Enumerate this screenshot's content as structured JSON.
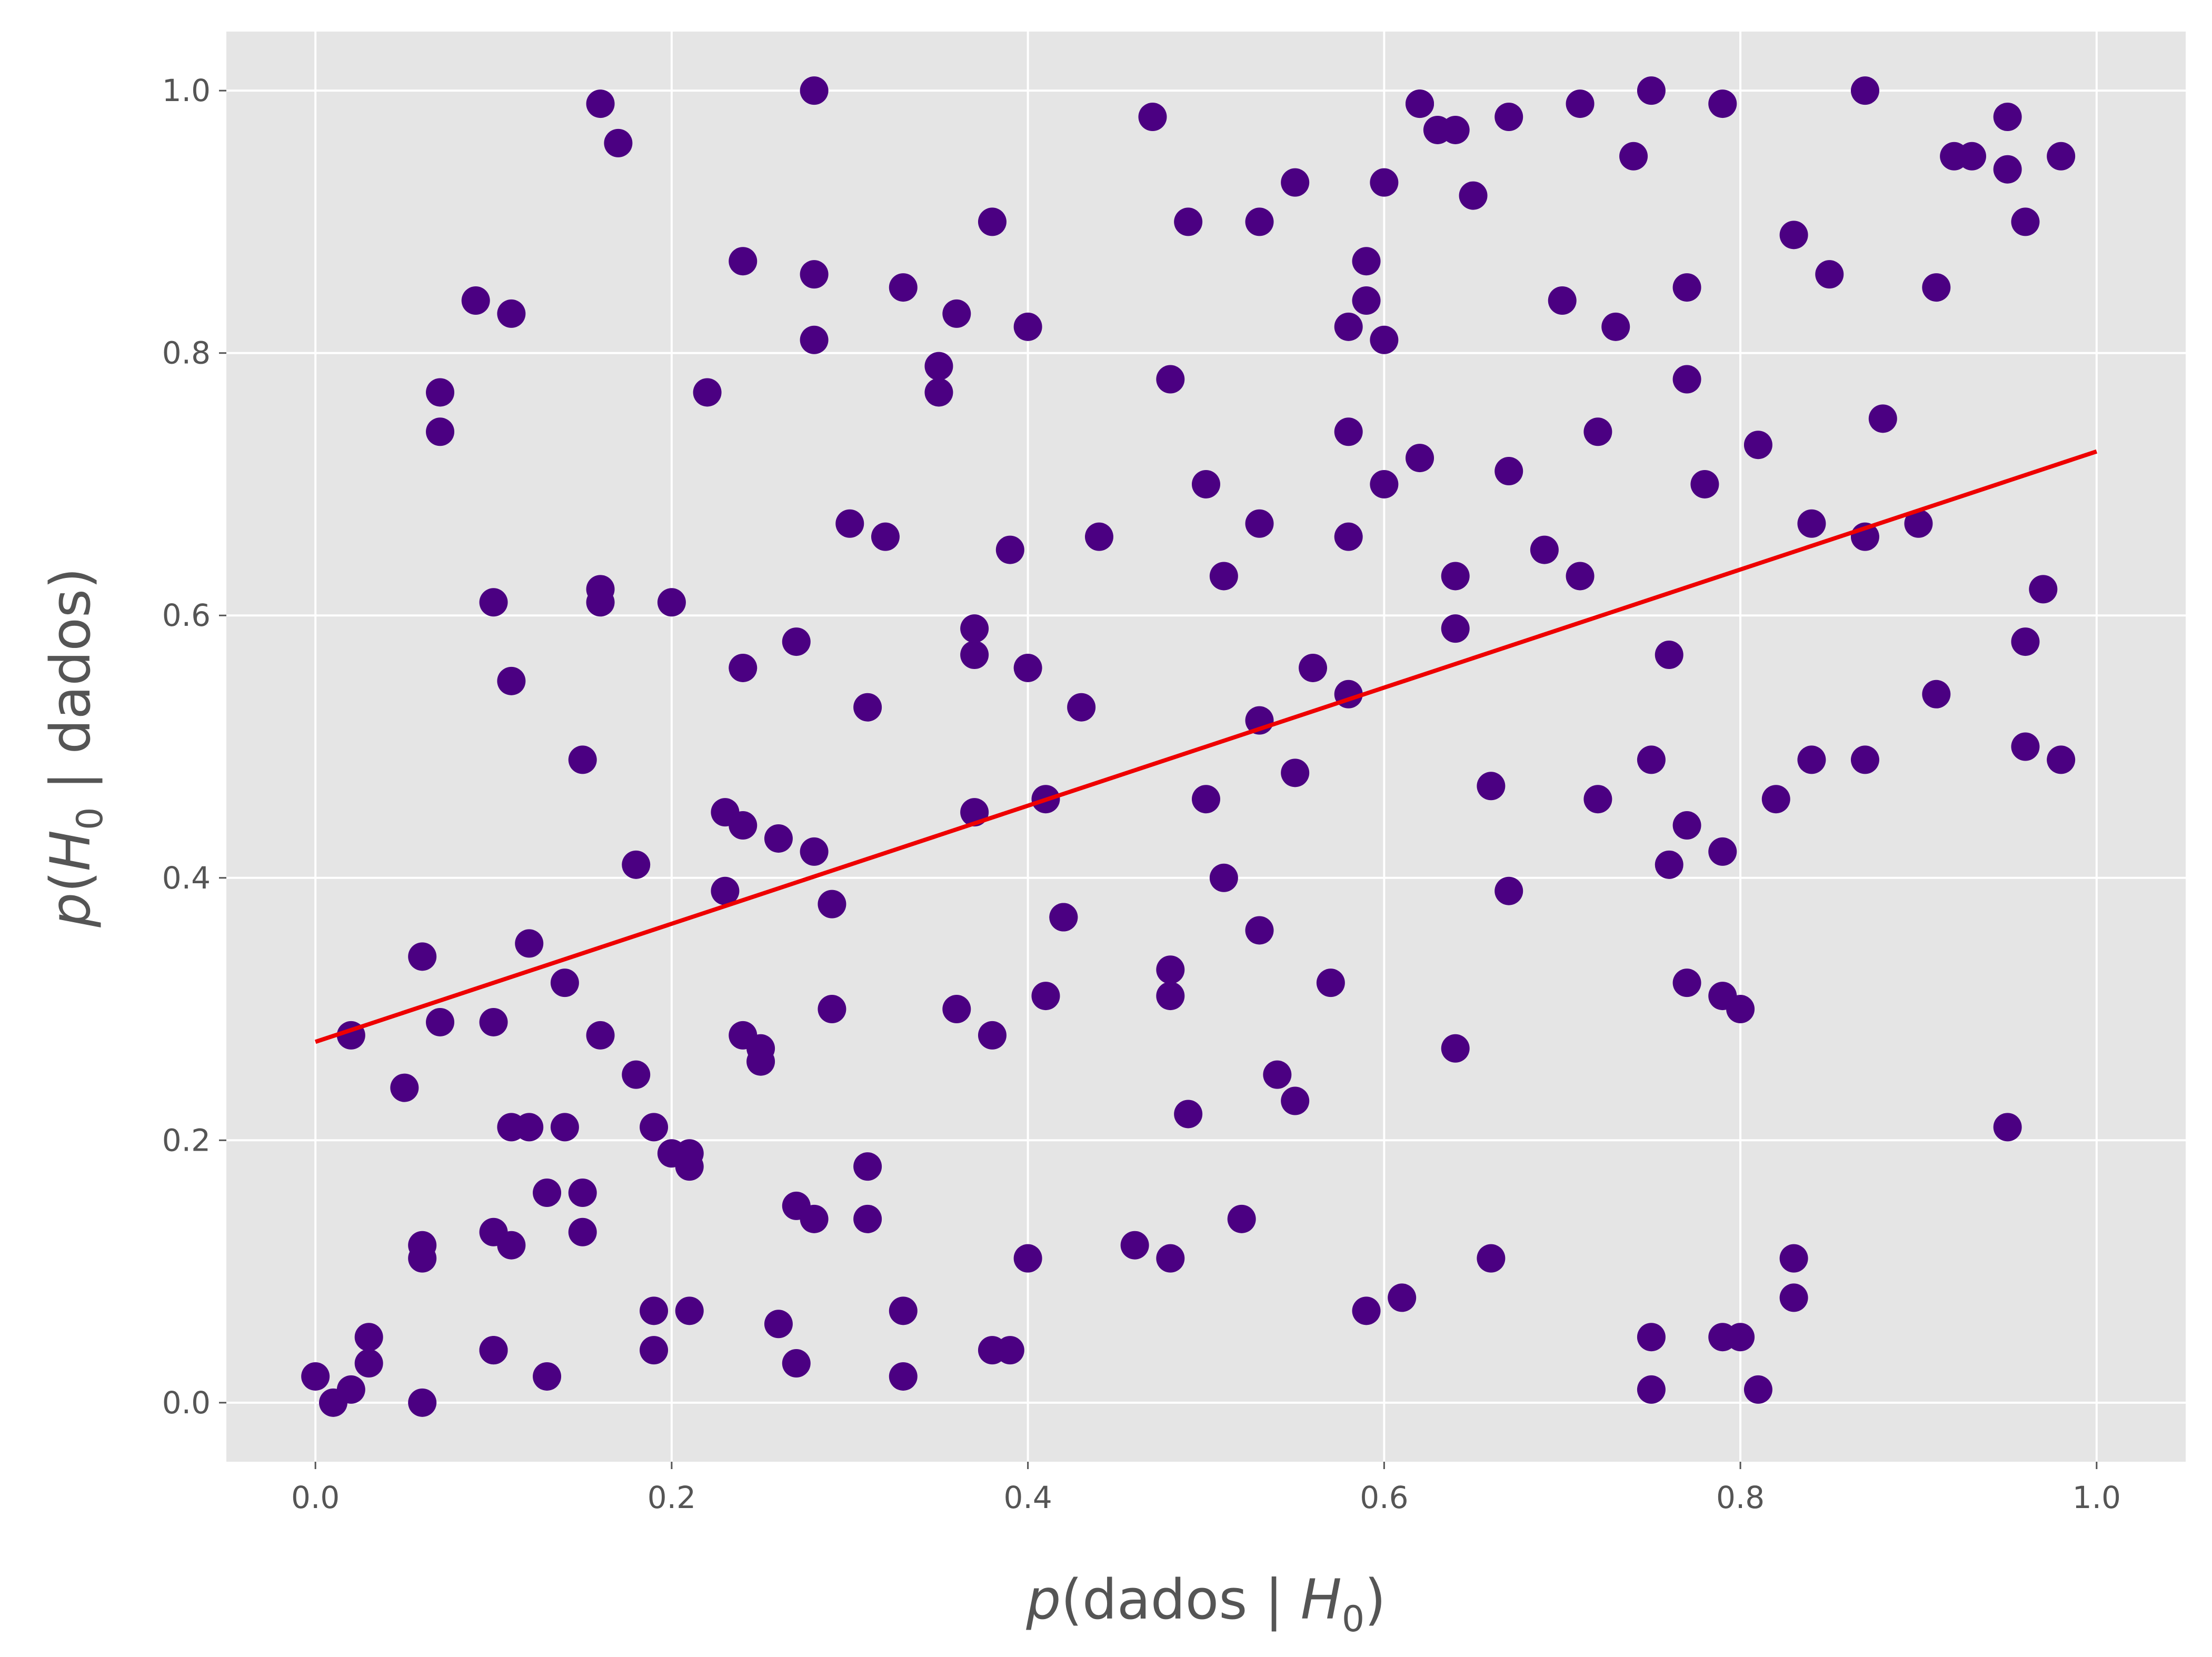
{
  "chart_data": {
    "type": "scatter",
    "xlabel": {
      "pre": "p",
      "mid": "(dados | ",
      "var": "H",
      "sub": "0",
      "post": ")"
    },
    "ylabel": {
      "pre": "p",
      "mid": "(",
      "var": "H",
      "sub": "0",
      "post": " | dados)"
    },
    "xlim": [
      -0.05,
      1.05
    ],
    "ylim": [
      -0.045,
      1.045
    ],
    "xticks": [
      0.0,
      0.2,
      0.4,
      0.6,
      0.8,
      1.0
    ],
    "yticks": [
      0.0,
      0.2,
      0.4,
      0.6,
      0.8,
      1.0
    ],
    "xtick_labels": [
      "0.0",
      "0.2",
      "0.4",
      "0.6",
      "0.8",
      "1.0"
    ],
    "ytick_labels": [
      "0.0",
      "0.2",
      "0.4",
      "0.6",
      "0.8",
      "1.0"
    ],
    "grid": true,
    "colors": {
      "background": "#e5e5e5",
      "point": "#4b0082",
      "line": "#ee0000"
    },
    "series": [
      {
        "points": [
          [
            0.0,
            0.02
          ],
          [
            0.01,
            0.0
          ],
          [
            0.02,
            0.01
          ],
          [
            0.02,
            0.28
          ],
          [
            0.03,
            0.03
          ],
          [
            0.03,
            0.05
          ],
          [
            0.05,
            0.24
          ],
          [
            0.06,
            0.0
          ],
          [
            0.06,
            0.34
          ],
          [
            0.06,
            0.11
          ],
          [
            0.06,
            0.12
          ],
          [
            0.07,
            0.74
          ],
          [
            0.07,
            0.77
          ],
          [
            0.07,
            0.29
          ],
          [
            0.09,
            0.84
          ],
          [
            0.1,
            0.29
          ],
          [
            0.1,
            0.61
          ],
          [
            0.1,
            0.04
          ],
          [
            0.1,
            0.13
          ],
          [
            0.1,
            0.04
          ],
          [
            0.11,
            0.83
          ],
          [
            0.11,
            0.12
          ],
          [
            0.11,
            0.55
          ],
          [
            0.11,
            0.21
          ],
          [
            0.12,
            0.21
          ],
          [
            0.12,
            0.35
          ],
          [
            0.13,
            0.02
          ],
          [
            0.13,
            0.16
          ],
          [
            0.14,
            0.32
          ],
          [
            0.14,
            0.21
          ],
          [
            0.15,
            0.49
          ],
          [
            0.15,
            0.16
          ],
          [
            0.15,
            0.13
          ],
          [
            0.16,
            0.99
          ],
          [
            0.16,
            0.61
          ],
          [
            0.16,
            0.28
          ],
          [
            0.16,
            0.62
          ],
          [
            0.17,
            0.96
          ],
          [
            0.18,
            0.41
          ],
          [
            0.18,
            0.25
          ],
          [
            0.19,
            0.07
          ],
          [
            0.19,
            0.21
          ],
          [
            0.19,
            0.04
          ],
          [
            0.2,
            0.61
          ],
          [
            0.2,
            0.19
          ],
          [
            0.21,
            0.18
          ],
          [
            0.21,
            0.19
          ],
          [
            0.21,
            0.07
          ],
          [
            0.22,
            0.77
          ],
          [
            0.23,
            0.45
          ],
          [
            0.23,
            0.39
          ],
          [
            0.24,
            0.44
          ],
          [
            0.24,
            0.28
          ],
          [
            0.24,
            0.87
          ],
          [
            0.24,
            0.56
          ],
          [
            0.25,
            0.27
          ],
          [
            0.25,
            0.26
          ],
          [
            0.26,
            0.43
          ],
          [
            0.26,
            0.06
          ],
          [
            0.27,
            0.58
          ],
          [
            0.27,
            0.15
          ],
          [
            0.27,
            0.03
          ],
          [
            0.28,
            1.0
          ],
          [
            0.28,
            0.81
          ],
          [
            0.28,
            0.42
          ],
          [
            0.28,
            0.86
          ],
          [
            0.28,
            0.14
          ],
          [
            0.29,
            0.38
          ],
          [
            0.29,
            0.3
          ],
          [
            0.3,
            0.67
          ],
          [
            0.31,
            0.53
          ],
          [
            0.31,
            0.18
          ],
          [
            0.31,
            0.14
          ],
          [
            0.32,
            0.66
          ],
          [
            0.33,
            0.02
          ],
          [
            0.33,
            0.85
          ],
          [
            0.33,
            0.07
          ],
          [
            0.35,
            0.77
          ],
          [
            0.35,
            0.79
          ],
          [
            0.36,
            0.83
          ],
          [
            0.36,
            0.3
          ],
          [
            0.37,
            0.57
          ],
          [
            0.37,
            0.45
          ],
          [
            0.37,
            0.59
          ],
          [
            0.38,
            0.9
          ],
          [
            0.38,
            0.28
          ],
          [
            0.38,
            0.04
          ],
          [
            0.39,
            0.65
          ],
          [
            0.39,
            0.04
          ],
          [
            0.4,
            0.82
          ],
          [
            0.4,
            0.56
          ],
          [
            0.4,
            0.11
          ],
          [
            0.41,
            0.31
          ],
          [
            0.41,
            0.46
          ],
          [
            0.42,
            0.37
          ],
          [
            0.42,
            0.37
          ],
          [
            0.43,
            0.53
          ],
          [
            0.44,
            0.66
          ],
          [
            0.46,
            0.12
          ],
          [
            0.47,
            0.98
          ],
          [
            0.48,
            0.31
          ],
          [
            0.48,
            0.11
          ],
          [
            0.48,
            0.78
          ],
          [
            0.48,
            0.33
          ],
          [
            0.49,
            0.9
          ],
          [
            0.49,
            0.22
          ],
          [
            0.5,
            0.46
          ],
          [
            0.5,
            0.7
          ],
          [
            0.51,
            0.4
          ],
          [
            0.51,
            0.63
          ],
          [
            0.52,
            0.14
          ],
          [
            0.53,
            0.52
          ],
          [
            0.53,
            0.67
          ],
          [
            0.53,
            0.36
          ],
          [
            0.53,
            0.9
          ],
          [
            0.54,
            0.25
          ],
          [
            0.55,
            0.93
          ],
          [
            0.55,
            0.48
          ],
          [
            0.55,
            0.23
          ],
          [
            0.56,
            0.56
          ],
          [
            0.57,
            0.32
          ],
          [
            0.58,
            0.66
          ],
          [
            0.58,
            0.82
          ],
          [
            0.58,
            0.74
          ],
          [
            0.58,
            0.54
          ],
          [
            0.59,
            0.87
          ],
          [
            0.59,
            0.84
          ],
          [
            0.59,
            0.07
          ],
          [
            0.6,
            0.93
          ],
          [
            0.6,
            0.81
          ],
          [
            0.6,
            0.7
          ],
          [
            0.61,
            0.08
          ],
          [
            0.62,
            0.99
          ],
          [
            0.62,
            0.99
          ],
          [
            0.62,
            0.72
          ],
          [
            0.63,
            0.97
          ],
          [
            0.64,
            0.63
          ],
          [
            0.64,
            0.97
          ],
          [
            0.64,
            0.59
          ],
          [
            0.64,
            0.27
          ],
          [
            0.65,
            0.92
          ],
          [
            0.66,
            0.47
          ],
          [
            0.66,
            0.11
          ],
          [
            0.67,
            0.98
          ],
          [
            0.67,
            0.71
          ],
          [
            0.67,
            0.39
          ],
          [
            0.69,
            0.65
          ],
          [
            0.7,
            0.84
          ],
          [
            0.71,
            0.99
          ],
          [
            0.71,
            0.63
          ],
          [
            0.72,
            0.74
          ],
          [
            0.72,
            0.46
          ],
          [
            0.73,
            0.82
          ],
          [
            0.74,
            0.95
          ],
          [
            0.75,
            0.49
          ],
          [
            0.75,
            0.05
          ],
          [
            0.75,
            1.0
          ],
          [
            0.75,
            0.01
          ],
          [
            0.76,
            0.57
          ],
          [
            0.76,
            0.41
          ],
          [
            0.77,
            0.44
          ],
          [
            0.77,
            0.85
          ],
          [
            0.77,
            0.78
          ],
          [
            0.77,
            0.32
          ],
          [
            0.78,
            0.7
          ],
          [
            0.79,
            0.05
          ],
          [
            0.79,
            0.31
          ],
          [
            0.79,
            0.99
          ],
          [
            0.79,
            0.42
          ],
          [
            0.8,
            0.3
          ],
          [
            0.8,
            0.05
          ],
          [
            0.81,
            0.01
          ],
          [
            0.81,
            0.73
          ],
          [
            0.82,
            0.46
          ],
          [
            0.83,
            0.89
          ],
          [
            0.83,
            0.11
          ],
          [
            0.83,
            0.08
          ],
          [
            0.84,
            0.49
          ],
          [
            0.84,
            0.67
          ],
          [
            0.85,
            0.86
          ],
          [
            0.87,
            1.0
          ],
          [
            0.87,
            0.66
          ],
          [
            0.87,
            0.49
          ],
          [
            0.88,
            0.75
          ],
          [
            0.9,
            0.67
          ],
          [
            0.91,
            0.85
          ],
          [
            0.91,
            0.54
          ],
          [
            0.92,
            0.95
          ],
          [
            0.93,
            0.95
          ],
          [
            0.95,
            0.98
          ],
          [
            0.95,
            0.94
          ],
          [
            0.95,
            0.21
          ],
          [
            0.96,
            0.9
          ],
          [
            0.96,
            0.58
          ],
          [
            0.96,
            0.5
          ],
          [
            0.97,
            0.62
          ],
          [
            0.98,
            0.49
          ],
          [
            0.98,
            0.95
          ]
        ]
      }
    ],
    "fit_line": {
      "x": [
        0.0,
        1.0
      ],
      "y": [
        0.275,
        0.725
      ]
    }
  }
}
